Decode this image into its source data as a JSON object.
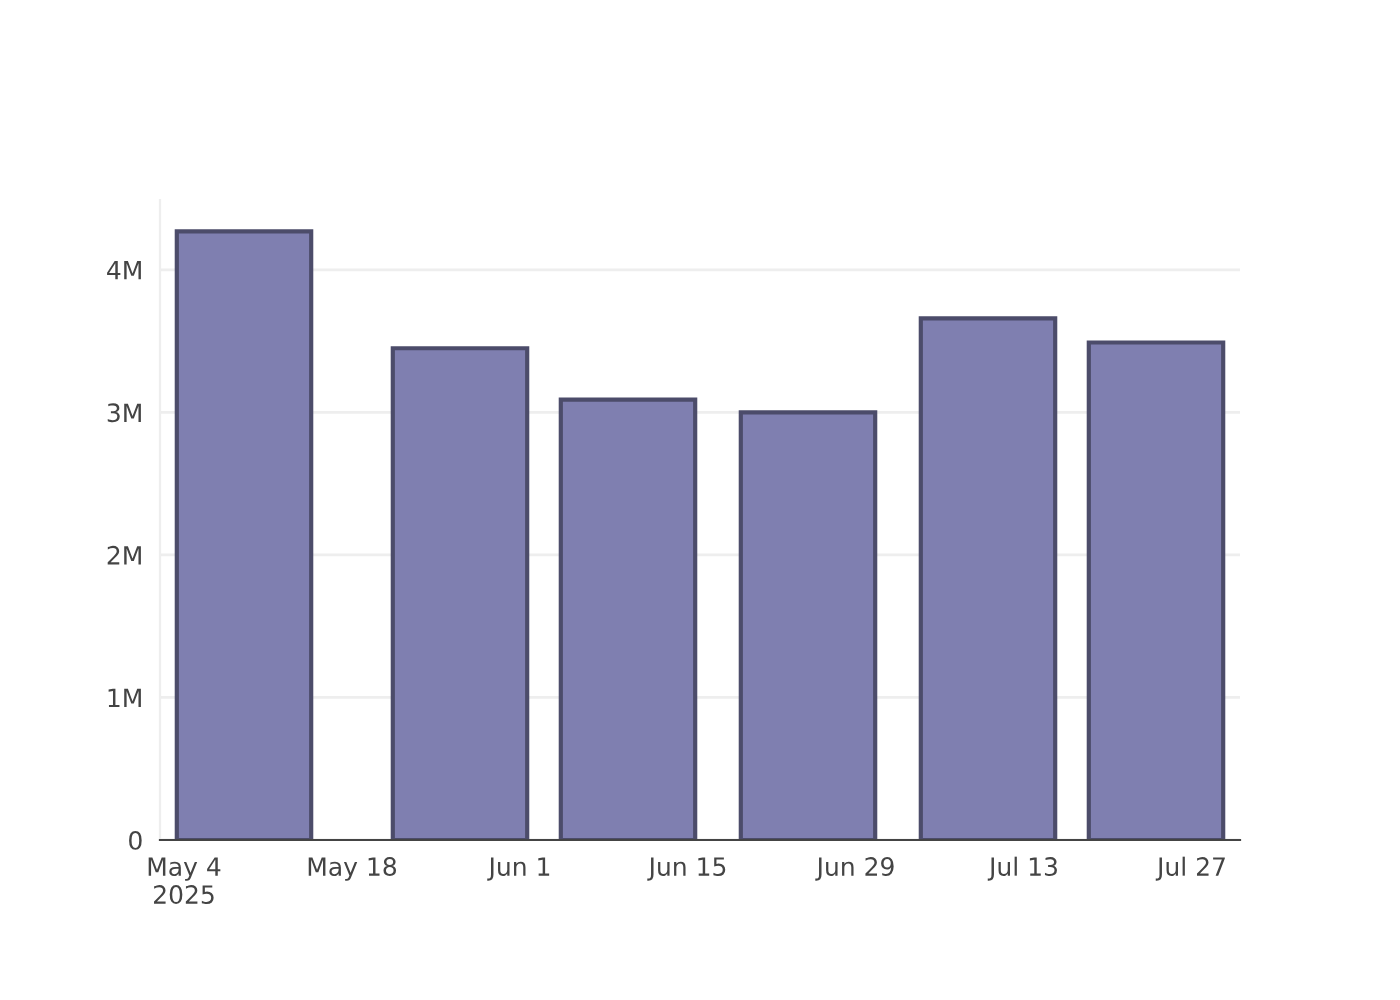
{
  "chart_data": {
    "type": "bar",
    "x": [
      "2025-05-09",
      "2025-05-27",
      "2025-06-10",
      "2025-06-25",
      "2025-07-10",
      "2025-07-24"
    ],
    "series": [
      {
        "color": "#7f7fb0",
        "values": [
          4270000,
          3450000,
          3090000,
          3000000,
          3660000,
          3490000
        ]
      }
    ],
    "xlim": [
      "2025-05-02",
      "2025-07-31"
    ],
    "xticks": [
      {
        "value": "2025-05-04",
        "label": "May 4\n2025"
      },
      {
        "value": "2025-05-18",
        "label": "May 18"
      },
      {
        "value": "2025-06-01",
        "label": "Jun 1"
      },
      {
        "value": "2025-06-15",
        "label": "Jun 15"
      },
      {
        "value": "2025-06-29",
        "label": "Jun 29"
      },
      {
        "value": "2025-07-13",
        "label": "Jul 13"
      },
      {
        "value": "2025-07-27",
        "label": "Jul 27"
      }
    ],
    "ylim": [
      0,
      4490000
    ],
    "yticks": [
      {
        "value": 0,
        "label": "0"
      },
      {
        "value": 1000000,
        "label": "1M"
      },
      {
        "value": 2000000,
        "label": "2M"
      },
      {
        "value": 3000000,
        "label": "3M"
      },
      {
        "value": 4000000,
        "label": "4M"
      }
    ],
    "grid": "y"
  }
}
